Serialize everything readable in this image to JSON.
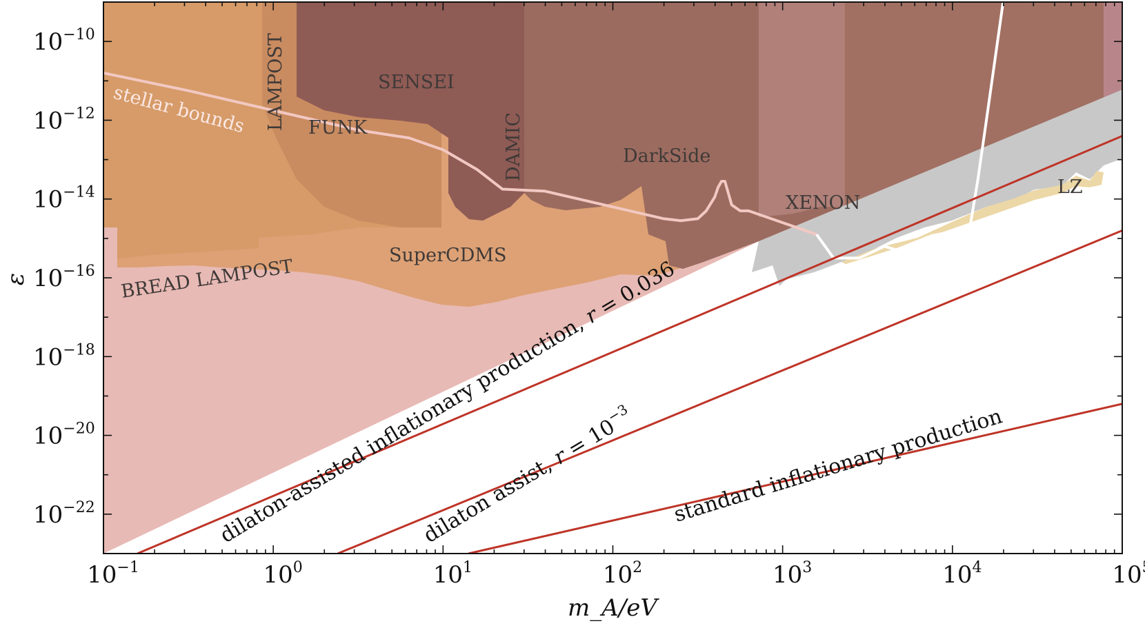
{
  "chart_data": {
    "type": "area",
    "title": "",
    "xlabel": "m_A/eV",
    "ylabel": "ε",
    "xscale": "log",
    "yscale": "log",
    "xlim_log10": [
      -1,
      5
    ],
    "ylim_log10": [
      -23,
      -9
    ],
    "x_ticks": [
      {
        "base": "10",
        "exp": "−1",
        "log10": -1
      },
      {
        "base": "10",
        "exp": "0",
        "log10": 0
      },
      {
        "base": "10",
        "exp": "1",
        "log10": 1
      },
      {
        "base": "10",
        "exp": "2",
        "log10": 2
      },
      {
        "base": "10",
        "exp": "3",
        "log10": 3
      },
      {
        "base": "10",
        "exp": "4",
        "log10": 4
      },
      {
        "base": "10",
        "exp": "5",
        "log10": 5
      }
    ],
    "y_ticks": [
      {
        "base": "10",
        "exp": "−10",
        "log10": -10
      },
      {
        "base": "10",
        "exp": "−12",
        "log10": -12
      },
      {
        "base": "10",
        "exp": "−14",
        "log10": -14
      },
      {
        "base": "10",
        "exp": "−16",
        "log10": -16
      },
      {
        "base": "10",
        "exp": "−18",
        "log10": -18
      },
      {
        "base": "10",
        "exp": "−20",
        "log10": -20
      },
      {
        "base": "10",
        "exp": "−22",
        "log10": -22
      }
    ],
    "regions": [
      {
        "name": "BREAD/LAMPOST projected",
        "label": "BREAD  LAMPOST",
        "color": "#e8bab5",
        "points_log10": [
          [
            -1,
            -15.7
          ],
          [
            0,
            -15.65
          ],
          [
            0.5,
            -15.55
          ],
          [
            1,
            -15.45
          ],
          [
            1.5,
            -15.55
          ],
          [
            2,
            -15.75
          ],
          [
            2.5,
            -15.9
          ],
          [
            2.8,
            -16
          ],
          [
            3,
            -16
          ],
          [
            3.2,
            -15.8
          ],
          [
            3.3,
            -15.3
          ],
          [
            -1,
            -9
          ]
        ]
      },
      {
        "name": "stellar bounds",
        "label": "stellar bounds",
        "color": "#e7c6bf"
      },
      {
        "name": "SuperCDMS",
        "label": "SuperCDMS",
        "color": "#dd9f72"
      },
      {
        "name": "LAMPOST",
        "label": "LAMPOST",
        "color": "#d39a68"
      },
      {
        "name": "FUNK",
        "label": "FUNK",
        "color": "#c98a5f"
      },
      {
        "name": "SENSEI",
        "label": "SENSEI",
        "color": "#8e5a55"
      },
      {
        "name": "DAMIC",
        "label": "DAMIC",
        "color": "#9b6960"
      },
      {
        "name": "DarkSide",
        "label": "DarkSide",
        "color": "#9c6a5e"
      },
      {
        "name": "XENON",
        "label": "XENON",
        "color": "#b07f77"
      },
      {
        "name": "LZ",
        "label": "LZ",
        "color": "#ecd7a7"
      },
      {
        "name": "grey constraint",
        "label": "",
        "color": "#c8c8c8"
      }
    ],
    "series": [
      {
        "name": "stellar bounds",
        "color": "#f2c8c2",
        "width": 4,
        "x_log10": [
          -1,
          -0.5,
          0,
          0.5,
          0.8,
          1,
          1.2,
          1.35,
          1.6,
          2,
          2.3,
          2.4,
          2.5,
          2.55,
          2.6,
          2.62,
          2.64,
          2.66,
          2.7,
          2.75,
          2.8,
          3,
          3.2
        ],
        "y_log10": [
          -10.8,
          -11.25,
          -11.75,
          -12.25,
          -12.45,
          -12.75,
          -13.25,
          -13.75,
          -13.8,
          -14.2,
          -14.5,
          -14.55,
          -14.5,
          -14.3,
          -13.95,
          -13.7,
          -13.55,
          -13.55,
          -14.15,
          -14.3,
          -14.3,
          -14.6,
          -14.9
        ]
      },
      {
        "name": "white bound",
        "color": "#ffffff",
        "width": 4,
        "x_log10": [
          3.2,
          3.3,
          3.45,
          3.6,
          3.75,
          3.9,
          4.05,
          4.1,
          4.15,
          4.2,
          4.3
        ],
        "y_log10": [
          -14.9,
          -15.5,
          -15.5,
          -15.2,
          -15.4,
          -15.55,
          -15.5,
          -14.8,
          -13.5,
          -12,
          -8.95
        ]
      }
    ],
    "lines": [
      {
        "label": "dilaton-assisted inflationary production, r = 0.036",
        "label_text": "dilaton-assisted inflationary production, ",
        "label_var": "r",
        "label_value": " = 0.036",
        "color": "#be3427",
        "x_log10": [
          -0.8,
          5
        ],
        "y_log10": [
          -23.0,
          -12.4
        ]
      },
      {
        "label": "dilaton assist, r = 10^-3",
        "label_text": "dilaton assist, ",
        "label_var": "r",
        "label_value": " = 10",
        "label_exp": "−3",
        "color": "#be3427",
        "x_log10": [
          0.38,
          5
        ],
        "y_log10": [
          -23.0,
          -14.8
        ]
      },
      {
        "label": "standard inflationary production",
        "label_text": "standard inflationary production",
        "color": "#be3427",
        "x_log10": [
          1.15,
          5
        ],
        "y_log10": [
          -23.0,
          -19.2
        ]
      }
    ]
  }
}
